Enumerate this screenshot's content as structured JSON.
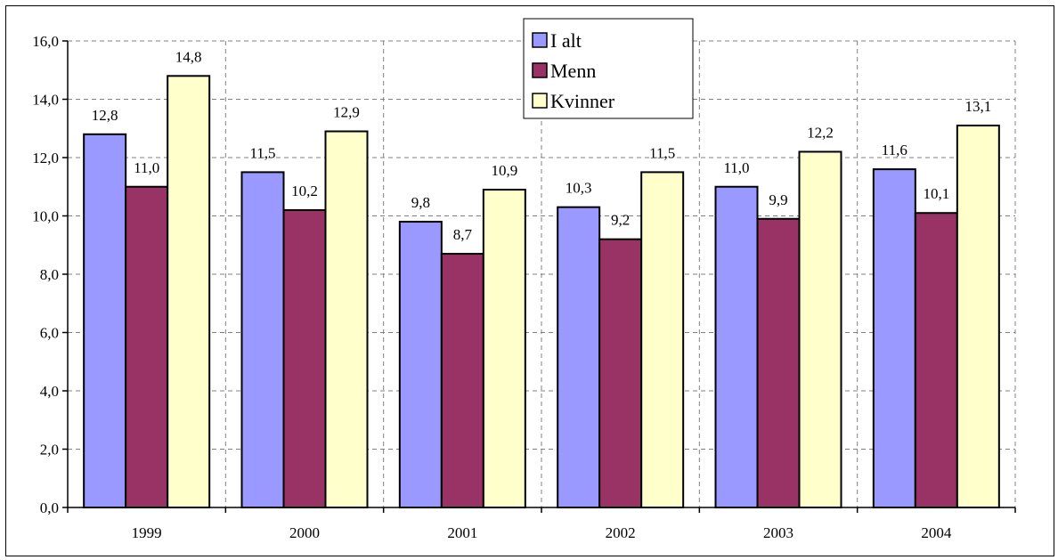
{
  "chart_data": {
    "type": "bar",
    "categories": [
      "1999",
      "2000",
      "2001",
      "2002",
      "2003",
      "2004"
    ],
    "series": [
      {
        "name": "I alt",
        "color": "#9999ff",
        "values": [
          12.8,
          11.5,
          9.8,
          10.3,
          11.0,
          11.6
        ],
        "labels": [
          "12,8",
          "11,5",
          "9,8",
          "10,3",
          "11,0",
          "11,6"
        ]
      },
      {
        "name": "Menn",
        "color": "#993366",
        "values": [
          11.0,
          10.2,
          8.7,
          9.2,
          9.9,
          10.1
        ],
        "labels": [
          "11,0",
          "10,2",
          "8,7",
          "9,2",
          "9,9",
          "10,1"
        ]
      },
      {
        "name": "Kvinner",
        "color": "#ffffcc",
        "values": [
          14.8,
          12.9,
          10.9,
          11.5,
          12.2,
          13.1
        ],
        "labels": [
          "14,8",
          "12,9",
          "10,9",
          "11,5",
          "12,2",
          "13,1"
        ]
      }
    ],
    "ylim": [
      0,
      16
    ],
    "yticks": [
      0,
      2,
      4,
      6,
      8,
      10,
      12,
      14,
      16
    ],
    "ytick_labels": [
      "0,0",
      "2,0",
      "4,0",
      "6,0",
      "8,0",
      "10,0",
      "12,0",
      "14,0",
      "16,0"
    ],
    "grid": "dashed",
    "legend_position": "top-center"
  }
}
